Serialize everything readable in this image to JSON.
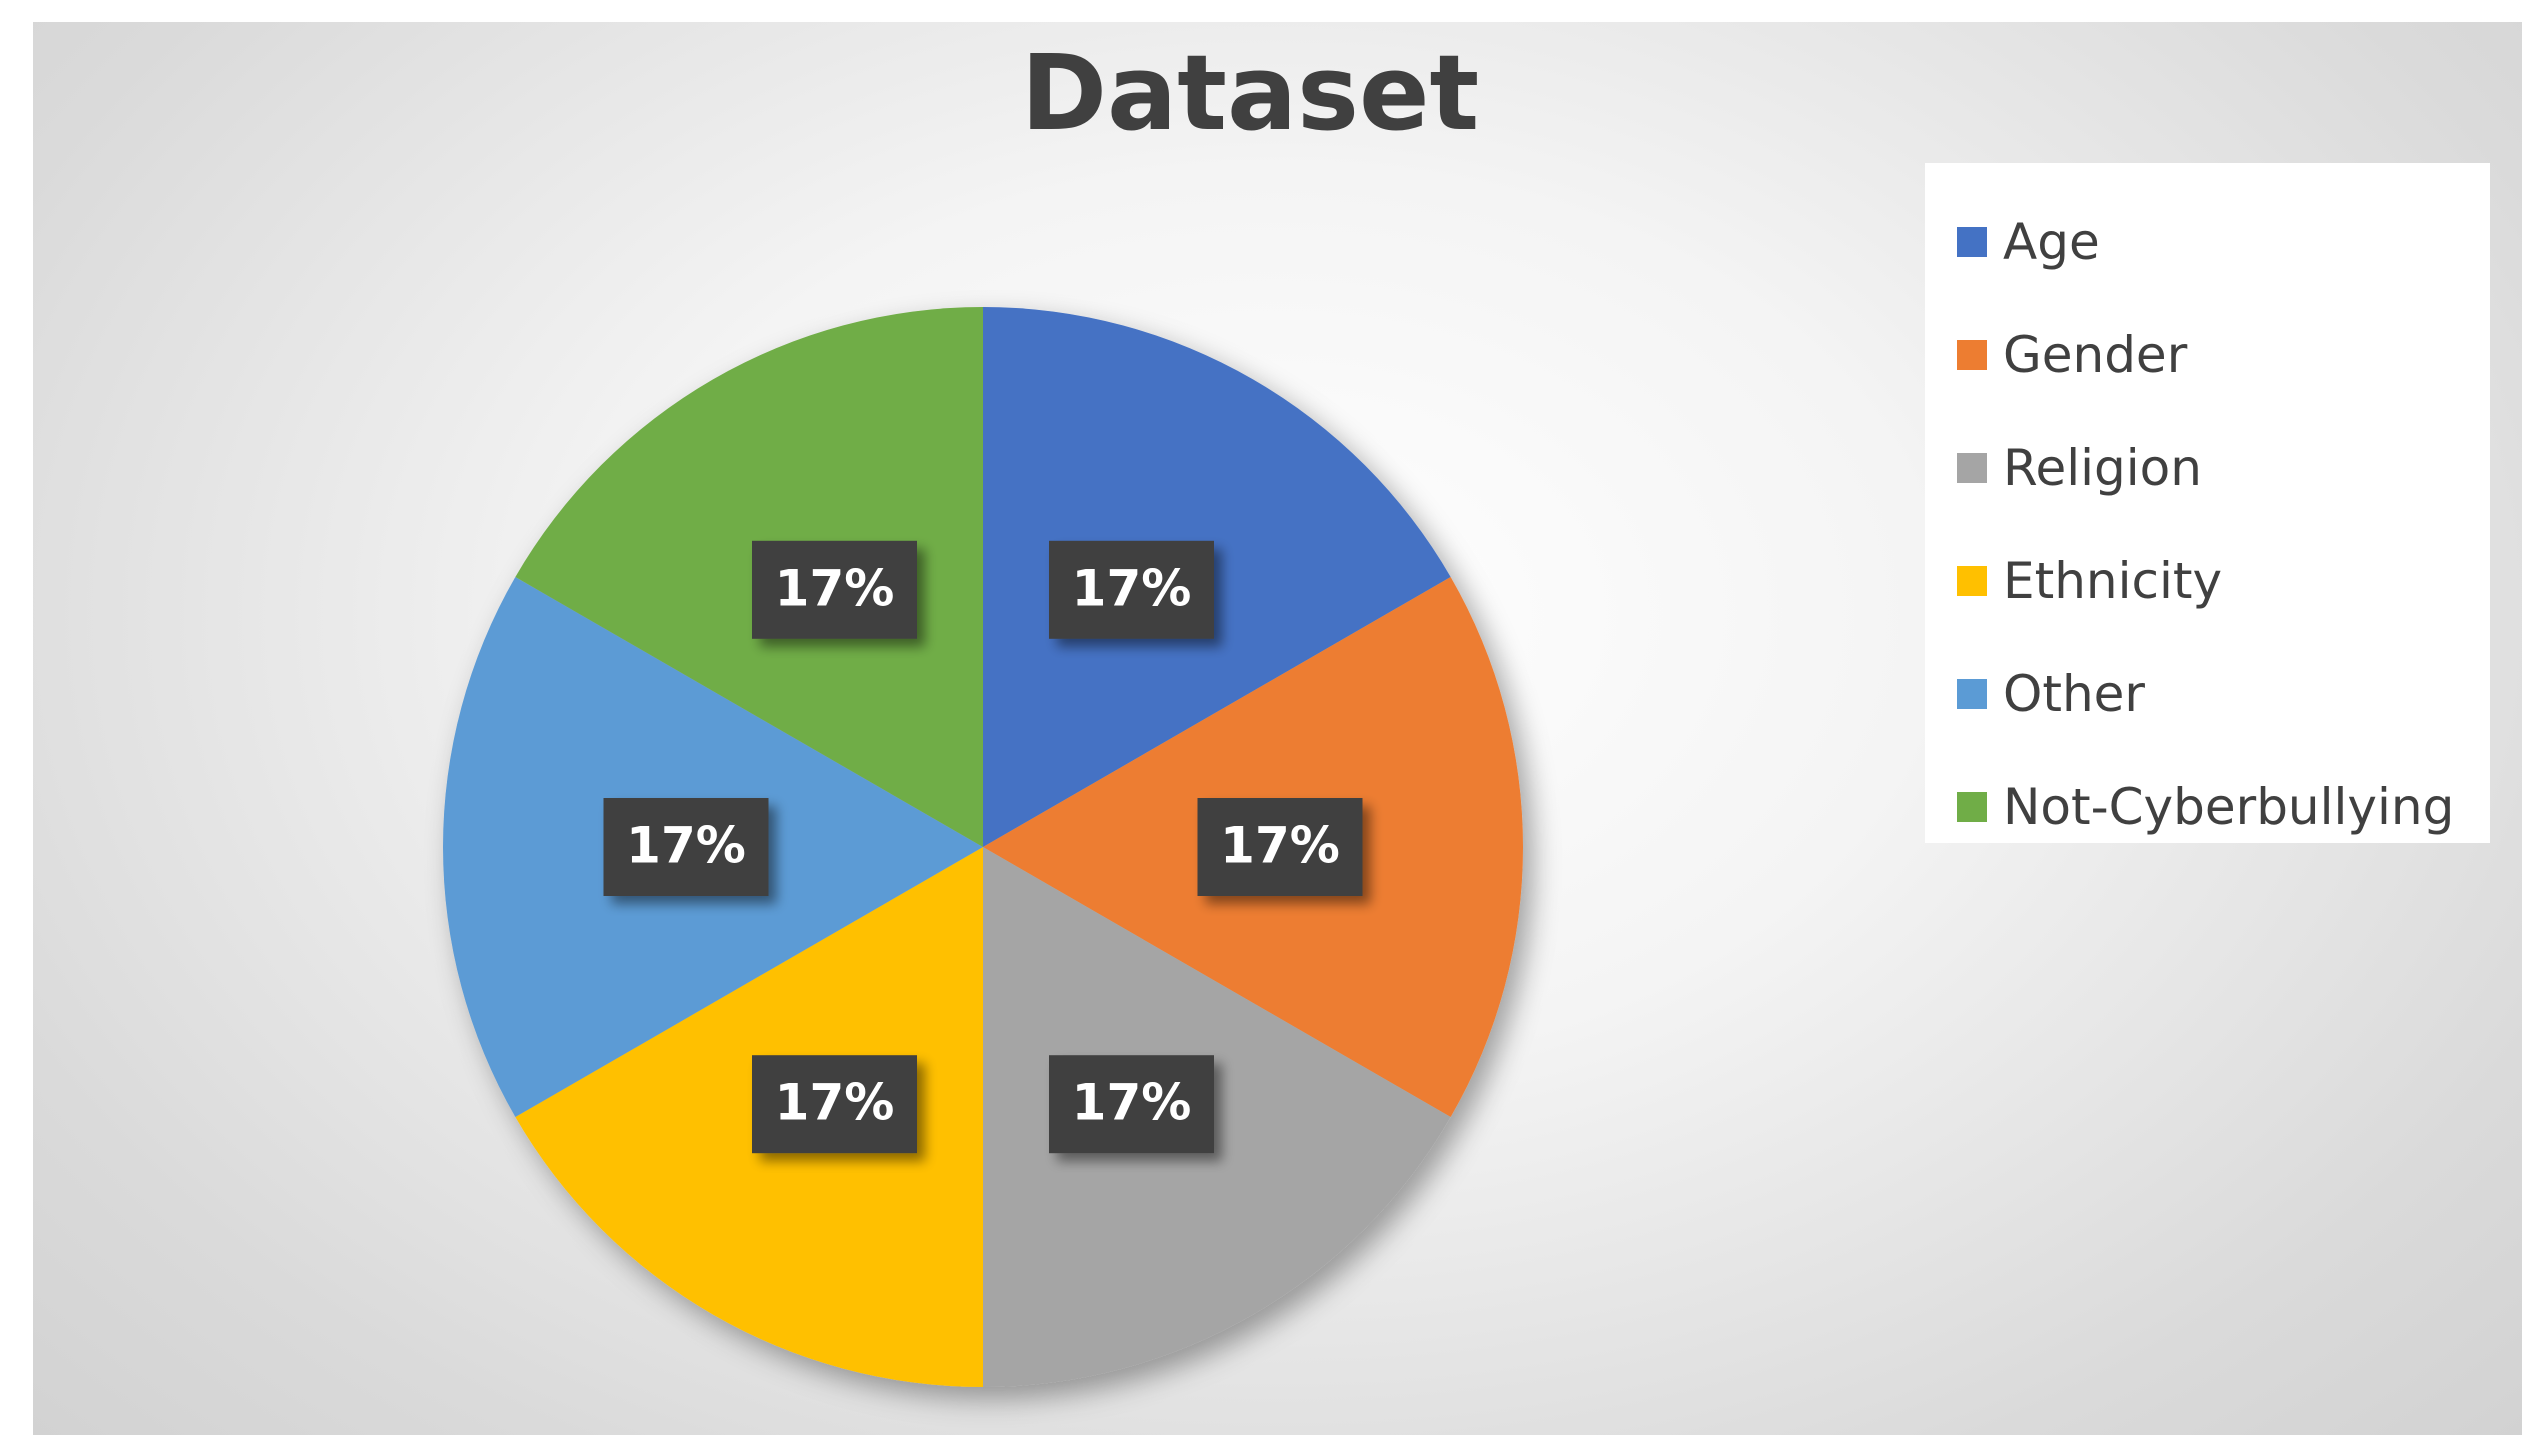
{
  "chart_data": {
    "type": "pie",
    "title": "Dataset",
    "categories": [
      "Age",
      "Gender",
      "Religion",
      "Ethnicity",
      "Other",
      "Not-Cyberbullying"
    ],
    "values": [
      17,
      17,
      17,
      17,
      17,
      17
    ],
    "data_labels": [
      "17%",
      "17%",
      "17%",
      "17%",
      "17%",
      "17%"
    ],
    "colors": [
      "#4472C4",
      "#ED7D31",
      "#A5A5A5",
      "#FFC000",
      "#5B9BD5",
      "#70AD47"
    ],
    "start_angle_deg": 0,
    "direction": "clockwise",
    "legend_position": "top-right",
    "data_label_background": "#404040"
  },
  "legend": {
    "items": [
      {
        "label": "Age",
        "color": "#4472C4"
      },
      {
        "label": "Gender",
        "color": "#ED7D31"
      },
      {
        "label": "Religion",
        "color": "#A5A5A5"
      },
      {
        "label": "Ethnicity",
        "color": "#FFC000"
      },
      {
        "label": "Other",
        "color": "#5B9BD5"
      },
      {
        "label": "Not-Cyberbullying",
        "color": "#70AD47"
      }
    ]
  }
}
